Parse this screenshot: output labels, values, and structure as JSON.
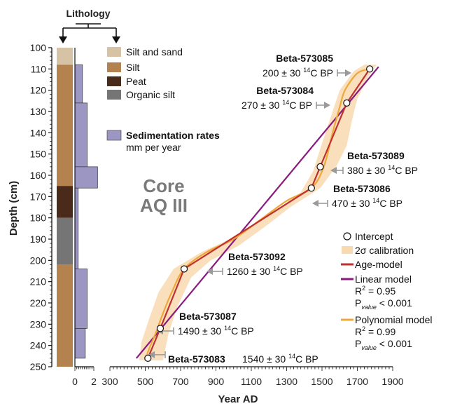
{
  "colors": {
    "silt_and_sand": "#d6c3a5",
    "silt": "#b3824f",
    "peat": "#4a2a19",
    "organic_silt": "#757575",
    "sed_rate": "#9c97c2",
    "calibration": "#f9d9b0",
    "age_model": "#c0302f",
    "linear_model": "#8b1a7e",
    "polynomial_model": "#eda83a",
    "arrow": "#9a9a9a"
  },
  "chart_data": {
    "type": "line",
    "title": "Core AQ III",
    "title_line1": "Core",
    "title_line2": "AQ III",
    "ylabel": "Depth (cm)",
    "xlabel": "Year AD",
    "ylim": [
      100,
      250
    ],
    "xlim": [
      300,
      1900
    ],
    "y_ticks": [
      "100",
      "110",
      "120",
      "130",
      "140",
      "150",
      "160",
      "170",
      "180",
      "190",
      "200",
      "210",
      "220",
      "230",
      "240",
      "250"
    ],
    "x_ticks": [
      "300",
      "500",
      "700",
      "900",
      "1100",
      "1300",
      "1500",
      "1700",
      "1900"
    ],
    "lithology": {
      "heading": "Lithology",
      "legend": [
        {
          "key": "silt_and_sand",
          "label": "Silt and sand"
        },
        {
          "key": "silt",
          "label": "Silt"
        },
        {
          "key": "peat",
          "label": "Peat"
        },
        {
          "key": "organic_silt",
          "label": "Organic silt"
        }
      ],
      "layers": [
        {
          "top": 100,
          "bottom": 108,
          "type": "silt_and_sand"
        },
        {
          "top": 108,
          "bottom": 165,
          "type": "silt"
        },
        {
          "top": 165,
          "bottom": 180,
          "type": "peat"
        },
        {
          "top": 180,
          "bottom": 202,
          "type": "organic_silt"
        },
        {
          "top": 202,
          "bottom": 250,
          "type": "silt"
        }
      ]
    },
    "sedimentation_rates": {
      "legend_title": "Sedimentation rates",
      "legend_unit": "mm per year",
      "x_ticks": [
        "0",
        "2"
      ],
      "xlim": [
        0,
        2
      ],
      "bars": [
        {
          "top": 108,
          "bottom": 126,
          "rate": 0.8
        },
        {
          "top": 126,
          "bottom": 156,
          "rate": 1.3
        },
        {
          "top": 156,
          "bottom": 166,
          "rate": 2.4
        },
        {
          "top": 166,
          "bottom": 204,
          "rate": 0.35
        },
        {
          "top": 204,
          "bottom": 232,
          "rate": 1.3
        },
        {
          "top": 232,
          "bottom": 246,
          "rate": 1.1
        }
      ]
    },
    "samples": [
      {
        "name": "Beta-573085",
        "age": "200 ± 30",
        "year": 1770,
        "depth": 110,
        "text_side": "left"
      },
      {
        "name": "Beta-573084",
        "age": "270 ± 30",
        "year": 1640,
        "depth": 126,
        "text_side": "left"
      },
      {
        "name": "Beta-573089",
        "age": "380 ± 30",
        "year": 1490,
        "depth": 156,
        "text_side": "right"
      },
      {
        "name": "Beta-573086",
        "age": "470 ± 30",
        "year": 1440,
        "depth": 166,
        "text_side": "right"
      },
      {
        "name": "Beta-573092",
        "age": "1260 ± 30",
        "year": 720,
        "depth": 204,
        "text_side": "right"
      },
      {
        "name": "Beta-573087",
        "age": "1490 ± 30",
        "year": 585,
        "depth": 232,
        "text_side": "right"
      },
      {
        "name": "Beta-573083",
        "age": "1540 ± 30",
        "year": 515,
        "depth": 246,
        "text_side": "right"
      }
    ],
    "age_unit_prefix": "14",
    "age_unit_suffix": "C BP",
    "linear_model": [
      [
        450,
        246
      ],
      [
        1820,
        109
      ]
    ],
    "polynomial_model": [
      [
        500,
        247
      ],
      [
        520,
        242
      ],
      [
        560,
        234
      ],
      [
        600,
        225
      ],
      [
        650,
        215
      ],
      [
        720,
        204
      ],
      [
        850,
        196
      ],
      [
        1000,
        190
      ],
      [
        1150,
        181
      ],
      [
        1300,
        172
      ],
      [
        1440,
        166
      ],
      [
        1510,
        156
      ],
      [
        1560,
        140
      ],
      [
        1600,
        128
      ],
      [
        1630,
        120
      ],
      [
        1700,
        112
      ],
      [
        1770,
        110
      ]
    ],
    "calibration_band": {
      "left": [
        [
          465,
          247
        ],
        [
          480,
          238
        ],
        [
          520,
          228
        ],
        [
          575,
          215
        ],
        [
          660,
          204
        ],
        [
          820,
          196
        ],
        [
          980,
          190
        ],
        [
          1130,
          182
        ],
        [
          1280,
          174
        ],
        [
          1380,
          168
        ],
        [
          1450,
          158
        ],
        [
          1500,
          145
        ],
        [
          1560,
          130
        ],
        [
          1600,
          120
        ],
        [
          1680,
          111
        ],
        [
          1740,
          108
        ]
      ],
      "right": [
        [
          1810,
          108
        ],
        [
          1760,
          114
        ],
        [
          1700,
          124
        ],
        [
          1670,
          134
        ],
        [
          1640,
          146
        ],
        [
          1580,
          156
        ],
        [
          1490,
          166
        ],
        [
          1320,
          175
        ],
        [
          1180,
          184
        ],
        [
          1030,
          193
        ],
        [
          870,
          200
        ],
        [
          760,
          208
        ],
        [
          680,
          222
        ],
        [
          630,
          235
        ],
        [
          600,
          247
        ]
      ]
    },
    "legend": {
      "intercept": "Intercept",
      "calibration": "2σ calibration",
      "age_model": "Age-model",
      "linear_model": "Linear model",
      "linear_r2_label": "R",
      "linear_r2_value": " = 0.95",
      "linear_p_label": "P",
      "linear_p_sub": "value",
      "linear_p_value": " < 0.001",
      "poly_model": "Polynomial model",
      "poly_r2_value": " = 0.99",
      "poly_p_value": " < 0.001"
    }
  }
}
